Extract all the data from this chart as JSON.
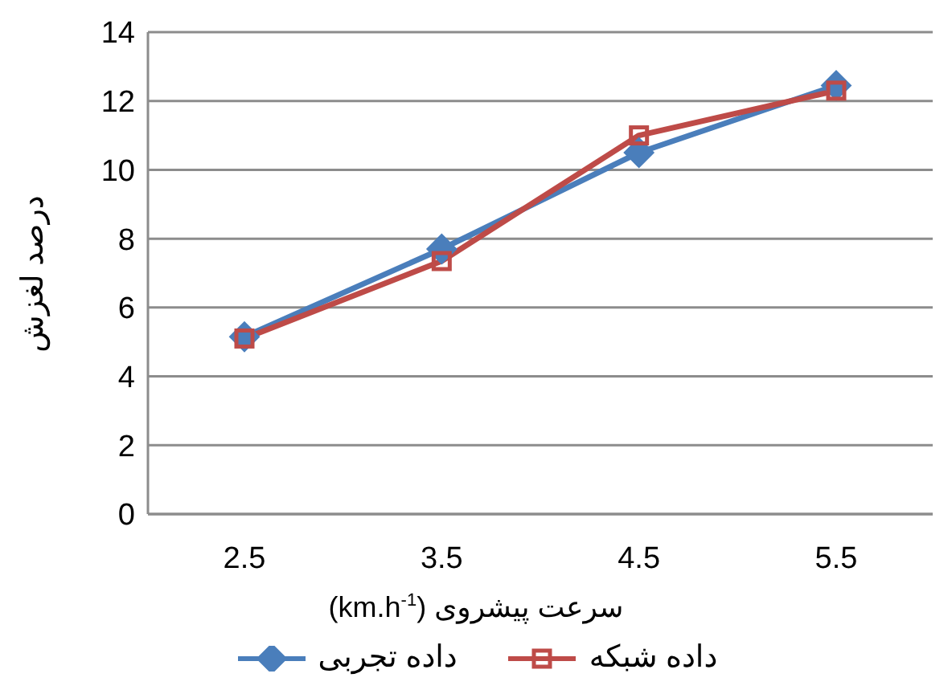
{
  "chart_data": {
    "type": "line",
    "xlabel": "سرعت پیشروی (km.h$^{-1}$)",
    "ylabel": "درصد لغزش",
    "categories": [
      "2.5",
      "3.5",
      "4.5",
      "5.5"
    ],
    "ylim": [
      0,
      14
    ],
    "yticks": [
      0,
      2,
      4,
      6,
      8,
      10,
      12,
      14
    ],
    "grid": "y",
    "legend": "bottom",
    "line_style": "solid",
    "series": [
      {
        "name": "داده تجربی",
        "color": "#4a7ebb",
        "marker": "diamond",
        "values": [
          5.15,
          7.7,
          10.5,
          12.45
        ]
      },
      {
        "name": "داده شبکه",
        "color": "#be4b48",
        "marker": "square",
        "values": [
          5.1,
          7.35,
          11.0,
          12.3
        ]
      }
    ]
  }
}
